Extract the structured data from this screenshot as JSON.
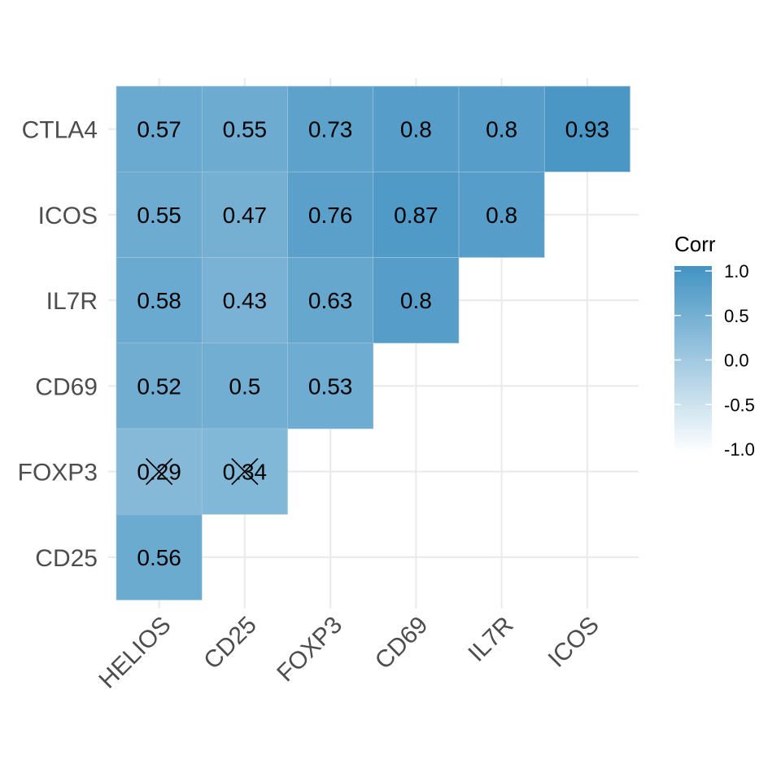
{
  "chart_data": {
    "type": "heatmap",
    "x_categories": [
      "HELIOS",
      "CD25",
      "FOXP3",
      "CD69",
      "IL7R",
      "ICOS"
    ],
    "y_categories": [
      "CTLA4",
      "ICOS",
      "IL7R",
      "CD69",
      "FOXP3",
      "CD25"
    ],
    "cells": [
      {
        "x": "HELIOS",
        "y": "CTLA4",
        "value": 0.57,
        "label": "0.57",
        "insignificant": false
      },
      {
        "x": "CD25",
        "y": "CTLA4",
        "value": 0.55,
        "label": "0.55",
        "insignificant": false
      },
      {
        "x": "FOXP3",
        "y": "CTLA4",
        "value": 0.73,
        "label": "0.73",
        "insignificant": false
      },
      {
        "x": "CD69",
        "y": "CTLA4",
        "value": 0.8,
        "label": "0.8",
        "insignificant": false
      },
      {
        "x": "IL7R",
        "y": "CTLA4",
        "value": 0.8,
        "label": "0.8",
        "insignificant": false
      },
      {
        "x": "ICOS",
        "y": "CTLA4",
        "value": 0.93,
        "label": "0.93",
        "insignificant": false
      },
      {
        "x": "HELIOS",
        "y": "ICOS",
        "value": 0.55,
        "label": "0.55",
        "insignificant": false
      },
      {
        "x": "CD25",
        "y": "ICOS",
        "value": 0.47,
        "label": "0.47",
        "insignificant": false
      },
      {
        "x": "FOXP3",
        "y": "ICOS",
        "value": 0.76,
        "label": "0.76",
        "insignificant": false
      },
      {
        "x": "CD69",
        "y": "ICOS",
        "value": 0.87,
        "label": "0.87",
        "insignificant": false
      },
      {
        "x": "IL7R",
        "y": "ICOS",
        "value": 0.8,
        "label": "0.8",
        "insignificant": false
      },
      {
        "x": "HELIOS",
        "y": "IL7R",
        "value": 0.58,
        "label": "0.58",
        "insignificant": false
      },
      {
        "x": "CD25",
        "y": "IL7R",
        "value": 0.43,
        "label": "0.43",
        "insignificant": false
      },
      {
        "x": "FOXP3",
        "y": "IL7R",
        "value": 0.63,
        "label": "0.63",
        "insignificant": false
      },
      {
        "x": "CD69",
        "y": "IL7R",
        "value": 0.8,
        "label": "0.8",
        "insignificant": false
      },
      {
        "x": "HELIOS",
        "y": "CD69",
        "value": 0.52,
        "label": "0.52",
        "insignificant": false
      },
      {
        "x": "CD25",
        "y": "CD69",
        "value": 0.5,
        "label": "0.5",
        "insignificant": false
      },
      {
        "x": "FOXP3",
        "y": "CD69",
        "value": 0.53,
        "label": "0.53",
        "insignificant": false
      },
      {
        "x": "HELIOS",
        "y": "FOXP3",
        "value": 0.29,
        "label": "0.29",
        "insignificant": true
      },
      {
        "x": "CD25",
        "y": "FOXP3",
        "value": 0.34,
        "label": "0.34",
        "insignificant": true
      },
      {
        "x": "HELIOS",
        "y": "CD25",
        "value": 0.56,
        "label": "0.56",
        "insignificant": false
      }
    ],
    "legend": {
      "title": "Corr",
      "ticks": [
        1.0,
        0.5,
        0.0,
        -0.5,
        -1.0
      ],
      "tick_labels": [
        "1.0",
        "0.5",
        "0.0",
        "-0.5",
        "-1.0"
      ],
      "range": [
        -1,
        1
      ],
      "low_color": "#ffffff",
      "high_color": "#4393c3",
      "placement": "right"
    },
    "grid": true,
    "title": "",
    "xlabel": "",
    "ylabel": ""
  }
}
